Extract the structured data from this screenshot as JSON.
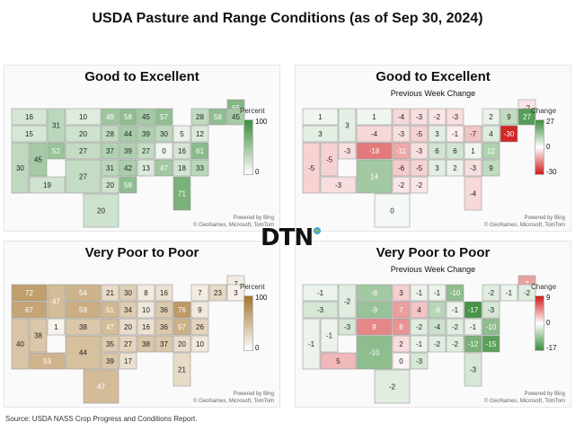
{
  "title": "USDA Pasture and Range Conditions (as of Sep 30, 2024)",
  "source": "Source:  USDA NASS Crop Progress and Conditions Report.",
  "logo_text": "DTN",
  "credits": {
    "powered": "Powered by Bing",
    "copyright": "© GeoNames, Microsoft, TomTom"
  },
  "panels": [
    {
      "id": "ge",
      "title": "Good to Excellent",
      "subtitle": "",
      "legend": {
        "title": "Percent",
        "top": "100",
        "mid": "",
        "bottom": "0"
      },
      "scale": {
        "type": "sequential",
        "color": "#3c8d3c",
        "max": 100
      },
      "values": {
        "WA": 16,
        "OR": 15,
        "CA": 30,
        "NV": 45,
        "ID": 31,
        "MT": 10,
        "WY": 20,
        "UT": 52,
        "AZ": 19,
        "CO": 27,
        "NM": 27,
        "ND": 49,
        "SD": 28,
        "NE": 37,
        "KS": 31,
        "OK": 20,
        "TX": 20,
        "MN": 58,
        "IA": 44,
        "MO": 39,
        "AR": 42,
        "LA": 58,
        "WI": 45,
        "IL": 39,
        "MI": 57,
        "IN": 30,
        "OH": 5,
        "KY": 0,
        "TN": 13,
        "MS": 27,
        "AL": 47,
        "GA": 18,
        "FL": 71,
        "SC": 33,
        "NC": 61,
        "VA": 12,
        "WV": 16,
        "PA": 28,
        "NY": 58,
        "ME": 65,
        "NH": 45
      }
    },
    {
      "id": "ge_chg",
      "title": "Good to Excellent",
      "subtitle": "Previous Week Change",
      "legend": {
        "title": "Change",
        "top": "27",
        "mid": "0",
        "bottom": "-30"
      },
      "scale": {
        "type": "diverging",
        "pos": "#3c8d3c",
        "neg": "#d01c1c",
        "max": 30
      },
      "values": {
        "WA": 1,
        "OR": 3,
        "CA": -5,
        "NV": -5,
        "ID": 3,
        "MT": 1,
        "WY": -4,
        "UT": -3,
        "AZ": -3,
        "CO": -18,
        "NM": 14,
        "ND": -4,
        "SD": -3,
        "NE": -11,
        "KS": -6,
        "OK": -2,
        "TX": 0,
        "MN": -3,
        "IA": -5,
        "MO": -3,
        "AR": -5,
        "LA": -2,
        "WI": -2,
        "IL": 3,
        "MI": -3,
        "IN": -1,
        "OH": -7,
        "KY": 6,
        "TN": 3,
        "MS": 6,
        "AL": 2,
        "GA": -3,
        "FL": -4,
        "SC": 9,
        "NC": 12,
        "VA": 4,
        "WV": 1,
        "PA": 2,
        "NY": 9,
        "ME": -2,
        "NH": 27,
        "CT": -30
      }
    },
    {
      "id": "vp",
      "title": "Very Poor to Poor",
      "subtitle": "",
      "legend": {
        "title": "Percent",
        "top": "100",
        "mid": "",
        "bottom": "0"
      },
      "scale": {
        "type": "sequential",
        "color": "#a5742a",
        "max": 100
      },
      "values": {
        "WA": 72,
        "OR": 67,
        "CA": 40,
        "NV": 38,
        "ID": 47,
        "MT": 54,
        "WY": 59,
        "UT": 1,
        "AZ": 53,
        "CO": 38,
        "NM": 44,
        "ND": 21,
        "SD": 51,
        "NE": 47,
        "KS": 35,
        "OK": 39,
        "TX": 47,
        "MN": 30,
        "IA": 34,
        "MO": 20,
        "AR": 27,
        "LA": 17,
        "WI": 8,
        "IL": 10,
        "MI": 16,
        "IN": 36,
        "OH": 76,
        "KY": 36,
        "TN": 38,
        "MS": 16,
        "AL": 37,
        "GA": 20,
        "FL": 21,
        "SC": 10,
        "NC": 26,
        "VA": 9,
        "WV": 57,
        "PA": 7,
        "NY": 23,
        "ME": 7,
        "NH": 3
      }
    },
    {
      "id": "vp_chg",
      "title": "Very Poor to Poor",
      "subtitle": "Previous Week Change",
      "legend": {
        "title": "Change",
        "top": "9",
        "mid": "0",
        "bottom": "-17"
      },
      "scale": {
        "type": "diverging",
        "pos": "#d01c1c",
        "neg": "#3c8d3c",
        "max": 17
      },
      "values": {
        "WA": -1,
        "OR": -3,
        "CA": -1,
        "NV": -1,
        "ID": -2,
        "MT": -8,
        "WY": -9,
        "UT": -3,
        "AZ": 5,
        "CO": 9,
        "NM": -10,
        "ND": 3,
        "SD": 7,
        "NE": 8,
        "KS": 2,
        "OK": 0,
        "TX": -2,
        "MN": -1,
        "IA": 4,
        "MO": -2,
        "AR": -1,
        "LA": -3,
        "WI": -1,
        "IL": -6,
        "MI": -10,
        "IN": -1,
        "OH": -17,
        "KY": -2,
        "TN": -2,
        "MS": -4,
        "AL": -2,
        "GA": -12,
        "FL": -3,
        "SC": -15,
        "NC": -10,
        "VA": -3,
        "WV": -1,
        "PA": -2,
        "NY": -1,
        "ME": 7,
        "NH": -2
      }
    }
  ]
}
